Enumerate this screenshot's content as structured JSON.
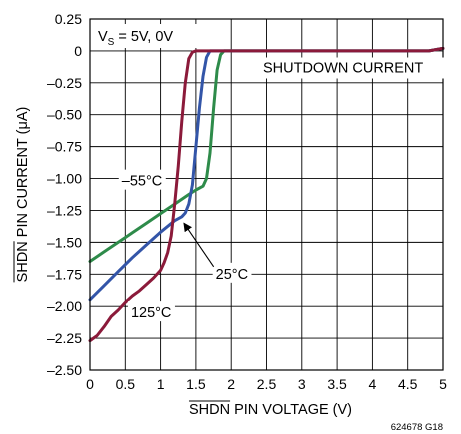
{
  "chart_data": {
    "type": "line",
    "xlabel_over": "SHDN",
    "xlabel_rest": " PIN VOLTAGE (V)",
    "ylabel_over": "SHDN",
    "ylabel_rest": " PIN CURRENT (μA)",
    "xlim": [
      0,
      5
    ],
    "ylim": [
      -2.5,
      0.25
    ],
    "x_ticks": [
      0,
      0.5,
      1,
      1.5,
      2,
      2.5,
      3,
      3.5,
      4,
      4.5,
      5
    ],
    "x_tick_labels": [
      "0",
      "0.5",
      "1",
      "1.5",
      "2",
      "2.5",
      "3",
      "3.5",
      "4",
      "4.5",
      "5"
    ],
    "y_ticks": [
      0.25,
      0,
      -0.25,
      -0.5,
      -0.75,
      -1.0,
      -1.25,
      -1.5,
      -1.75,
      -2.0,
      -2.25,
      -2.5
    ],
    "y_tick_labels": [
      "0.25",
      "0",
      "–0.25",
      "–0.50",
      "–0.75",
      "–1.00",
      "–1.25",
      "–1.50",
      "–1.75",
      "–2.00",
      "–2.25",
      "–2.50"
    ],
    "grid": true,
    "condition": {
      "prefix": "V",
      "sub": "S",
      "rest": " = 5V, 0V"
    },
    "annotation": "SHUTDOWN CURRENT",
    "figure_id": "624678 G18",
    "series": [
      {
        "name": "–55°C",
        "color": "#2e8b4a",
        "x": [
          0,
          0.2,
          0.4,
          0.6,
          0.8,
          1.0,
          1.2,
          1.4,
          1.5,
          1.6,
          1.65,
          1.7,
          1.75,
          1.8,
          1.85,
          1.9,
          2.0,
          2.5,
          3,
          3.5,
          4,
          4.5,
          4.8,
          5
        ],
        "y": [
          -1.65,
          -1.575,
          -1.5,
          -1.425,
          -1.35,
          -1.275,
          -1.2,
          -1.125,
          -1.09,
          -1.06,
          -1.0,
          -0.8,
          -0.45,
          -0.15,
          -0.03,
          0,
          0,
          0,
          0,
          0,
          0,
          0,
          0,
          0.02
        ]
      },
      {
        "name": "25°C",
        "color": "#3355a8",
        "x": [
          0,
          0.2,
          0.4,
          0.6,
          0.8,
          1.0,
          1.2,
          1.3,
          1.35,
          1.4,
          1.45,
          1.5,
          1.55,
          1.6,
          1.65,
          1.7,
          1.8,
          2.0,
          2.5,
          3,
          3.5,
          4,
          4.5,
          4.8,
          5
        ],
        "y": [
          -1.95,
          -1.84,
          -1.73,
          -1.62,
          -1.52,
          -1.42,
          -1.33,
          -1.3,
          -1.27,
          -1.2,
          -1.05,
          -0.75,
          -0.45,
          -0.2,
          -0.05,
          0,
          0,
          0,
          0,
          0,
          0,
          0,
          0,
          0,
          0.02
        ]
      },
      {
        "name": "125°C",
        "color": "#8b1a3a",
        "x": [
          0,
          0.1,
          0.2,
          0.3,
          0.4,
          0.5,
          0.6,
          0.7,
          0.8,
          0.9,
          1.0,
          1.05,
          1.1,
          1.15,
          1.2,
          1.25,
          1.3,
          1.35,
          1.4,
          1.45,
          1.5,
          1.6,
          1.8,
          2.0,
          2.5,
          3,
          3.5,
          4,
          4.5,
          4.8,
          5
        ],
        "y": [
          -2.27,
          -2.23,
          -2.16,
          -2.08,
          -2.03,
          -1.97,
          -1.92,
          -1.88,
          -1.83,
          -1.78,
          -1.72,
          -1.66,
          -1.58,
          -1.45,
          -1.2,
          -0.9,
          -0.55,
          -0.25,
          -0.06,
          -0.01,
          0,
          0,
          0,
          0,
          0,
          0,
          0,
          0,
          0,
          0,
          0.02
        ]
      }
    ],
    "series_labels": [
      {
        "series": 0,
        "text": "–55°C",
        "at": [
          0.45,
          -1.04
        ]
      },
      {
        "series": 1,
        "text": "25°C",
        "at": [
          1.78,
          -1.77
        ],
        "arrow_to": [
          1.33,
          -1.35
        ]
      },
      {
        "series": 2,
        "text": "125°C",
        "at": [
          0.58,
          -2.07
        ]
      }
    ]
  }
}
